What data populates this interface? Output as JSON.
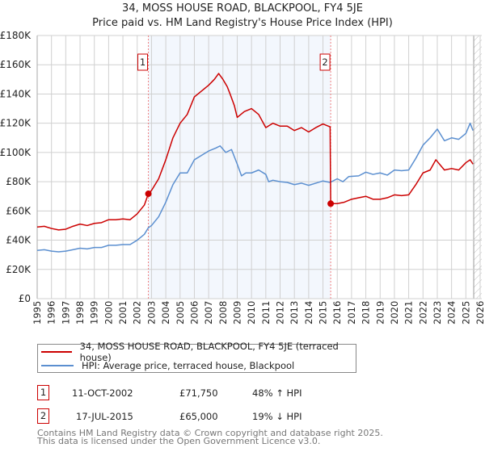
{
  "chart_data": {
    "type": "line",
    "title": "34, MOSS HOUSE ROAD, BLACKPOOL, FY4 5JE",
    "subtitle": "Price paid vs. HM Land Registry's House Price Index (HPI)",
    "xlim": [
      1995,
      2026
    ],
    "ylim": [
      0,
      180000
    ],
    "y_ticks": [
      0,
      20000,
      40000,
      60000,
      80000,
      100000,
      120000,
      140000,
      160000,
      180000
    ],
    "y_tick_labels": [
      "£0",
      "£20K",
      "£40K",
      "£60K",
      "£80K",
      "£100K",
      "£120K",
      "£140K",
      "£160K",
      "£180K"
    ],
    "x_ticks": [
      1995,
      1996,
      1997,
      1998,
      1999,
      2000,
      2001,
      2002,
      2003,
      2004,
      2005,
      2006,
      2007,
      2008,
      2009,
      2010,
      2011,
      2012,
      2013,
      2014,
      2015,
      2016,
      2017,
      2018,
      2019,
      2020,
      2021,
      2022,
      2023,
      2024,
      2025,
      2026
    ],
    "grid": true,
    "shaded_range": [
      2002.78,
      2015.54
    ],
    "forecast_hatch_from": 2025.55,
    "series": [
      {
        "name": "34, MOSS HOUSE ROAD, BLACKPOOL, FY4 5JE (terraced house)",
        "color": "#cc0000",
        "points": [
          [
            1995,
            49
          ],
          [
            1995.5,
            49.5
          ],
          [
            1996,
            48
          ],
          [
            1996.5,
            47
          ],
          [
            1997,
            47.5
          ],
          [
            1997.5,
            49.5
          ],
          [
            1998,
            51
          ],
          [
            1998.5,
            50
          ],
          [
            1999,
            51.5
          ],
          [
            1999.5,
            52
          ],
          [
            2000,
            54
          ],
          [
            2000.5,
            54
          ],
          [
            2001,
            54.5
          ],
          [
            2001.5,
            54
          ],
          [
            2002,
            58
          ],
          [
            2002.5,
            64
          ],
          [
            2002.78,
            71.75
          ],
          [
            2003,
            74
          ],
          [
            2003.5,
            82
          ],
          [
            2004,
            95
          ],
          [
            2004.5,
            110
          ],
          [
            2005,
            120
          ],
          [
            2005.5,
            126
          ],
          [
            2006,
            138
          ],
          [
            2006.5,
            142
          ],
          [
            2007,
            146
          ],
          [
            2007.4,
            150
          ],
          [
            2007.7,
            154
          ],
          [
            2008,
            150
          ],
          [
            2008.3,
            145
          ],
          [
            2008.5,
            140
          ],
          [
            2008.8,
            132
          ],
          [
            2009,
            124
          ],
          [
            2009.5,
            128
          ],
          [
            2010,
            130
          ],
          [
            2010.5,
            126
          ],
          [
            2011,
            117
          ],
          [
            2011.5,
            120
          ],
          [
            2012,
            118
          ],
          [
            2012.5,
            118
          ],
          [
            2013,
            115
          ],
          [
            2013.5,
            117
          ],
          [
            2014,
            114
          ],
          [
            2014.5,
            117
          ],
          [
            2015,
            119.5
          ],
          [
            2015.5,
            117.5
          ],
          [
            2015.54,
            65
          ],
          [
            2016,
            65
          ],
          [
            2016.5,
            66
          ],
          [
            2017,
            68
          ],
          [
            2017.5,
            69
          ],
          [
            2018,
            70
          ],
          [
            2018.5,
            68
          ],
          [
            2019,
            68
          ],
          [
            2019.5,
            69
          ],
          [
            2020,
            71
          ],
          [
            2020.5,
            70.5
          ],
          [
            2021,
            71
          ],
          [
            2021.5,
            78
          ],
          [
            2022,
            86
          ],
          [
            2022.5,
            88
          ],
          [
            2022.9,
            95
          ],
          [
            2023.5,
            88
          ],
          [
            2024,
            89
          ],
          [
            2024.5,
            88
          ],
          [
            2025,
            93
          ],
          [
            2025.3,
            95
          ],
          [
            2025.5,
            92
          ]
        ]
      },
      {
        "name": "HPI: Average price, terraced house, Blackpool",
        "color": "#5b8fd0",
        "points": [
          [
            1995,
            33
          ],
          [
            1995.5,
            33.5
          ],
          [
            1996,
            32.5
          ],
          [
            1996.5,
            32
          ],
          [
            1997,
            32.5
          ],
          [
            1997.5,
            33.5
          ],
          [
            1998,
            34.5
          ],
          [
            1998.5,
            34
          ],
          [
            1999,
            35
          ],
          [
            1999.5,
            35
          ],
          [
            2000,
            36.5
          ],
          [
            2000.5,
            36.5
          ],
          [
            2001,
            37
          ],
          [
            2001.5,
            37
          ],
          [
            2002,
            40
          ],
          [
            2002.5,
            44
          ],
          [
            2002.78,
            48.5
          ],
          [
            2003,
            50
          ],
          [
            2003.5,
            56
          ],
          [
            2004,
            66
          ],
          [
            2004.5,
            78
          ],
          [
            2005,
            86
          ],
          [
            2005.5,
            86
          ],
          [
            2006,
            95
          ],
          [
            2006.5,
            98
          ],
          [
            2007,
            101
          ],
          [
            2007.5,
            103
          ],
          [
            2007.8,
            104.5
          ],
          [
            2008.2,
            100
          ],
          [
            2008.6,
            102
          ],
          [
            2009,
            92
          ],
          [
            2009.3,
            84
          ],
          [
            2009.6,
            86
          ],
          [
            2010,
            86
          ],
          [
            2010.5,
            88
          ],
          [
            2011,
            85
          ],
          [
            2011.2,
            80
          ],
          [
            2011.5,
            81
          ],
          [
            2012,
            80
          ],
          [
            2012.5,
            79.5
          ],
          [
            2013,
            78
          ],
          [
            2013.5,
            79
          ],
          [
            2014,
            77.5
          ],
          [
            2014.5,
            79
          ],
          [
            2015,
            80.5
          ],
          [
            2015.5,
            79.5
          ],
          [
            2016,
            82
          ],
          [
            2016.4,
            80
          ],
          [
            2016.8,
            83.5
          ],
          [
            2017.5,
            84
          ],
          [
            2018,
            86.5
          ],
          [
            2018.5,
            85
          ],
          [
            2019,
            86
          ],
          [
            2019.5,
            84.5
          ],
          [
            2020,
            88
          ],
          [
            2020.5,
            87.5
          ],
          [
            2021,
            88
          ],
          [
            2021.5,
            96
          ],
          [
            2022,
            105
          ],
          [
            2022.5,
            110
          ],
          [
            2023,
            116
          ],
          [
            2023.5,
            108
          ],
          [
            2024,
            110
          ],
          [
            2024.5,
            109
          ],
          [
            2025,
            113
          ],
          [
            2025.3,
            120
          ],
          [
            2025.5,
            115
          ]
        ]
      }
    ],
    "sales": [
      {
        "id": "1",
        "year": 2002.78,
        "price": 71750,
        "date": "11-OCT-2002",
        "price_label": "£71,750",
        "hpi_label": "48% ↑ HPI"
      },
      {
        "id": "2",
        "year": 2015.54,
        "price": 65000,
        "date": "17-JUL-2015",
        "price_label": "£65,000",
        "hpi_label": "19% ↓ HPI"
      }
    ]
  },
  "footer": {
    "line1": "Contains HM Land Registry data © Crown copyright and database right 2025.",
    "line2": "This data is licensed under the Open Government Licence v3.0."
  }
}
